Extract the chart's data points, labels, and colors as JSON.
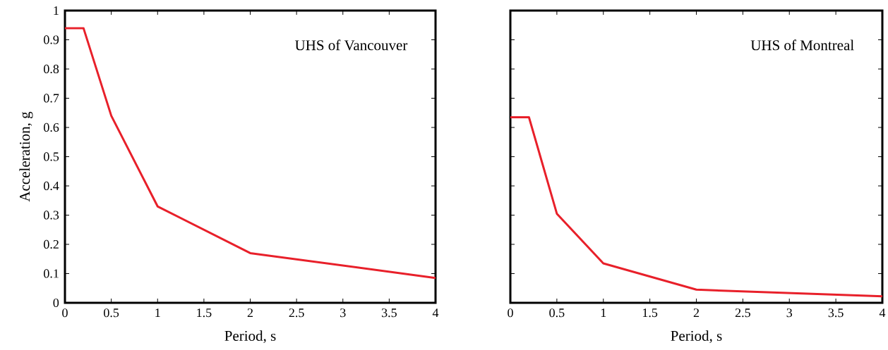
{
  "chart_data": [
    {
      "type": "line",
      "xlabel": "Period, s",
      "ylabel": "Acceleration, g",
      "annotations": [
        "UHS of Vancouver"
      ],
      "xlim": [
        0,
        4
      ],
      "ylim": [
        0,
        1
      ],
      "xticks": [
        0,
        0.5,
        1,
        1.5,
        2,
        2.5,
        3,
        3.5,
        4
      ],
      "yticks": [
        0,
        0.1,
        0.2,
        0.3,
        0.4,
        0.5,
        0.6,
        0.7,
        0.8,
        0.9,
        1
      ],
      "x": [
        0,
        0.2,
        0.5,
        1,
        2,
        4
      ],
      "series": [
        {
          "color": "#e8202a",
          "values": [
            0.94,
            0.94,
            0.64,
            0.33,
            0.17,
            0.085
          ]
        }
      ]
    },
    {
      "type": "line",
      "xlabel": "Period, s",
      "annotations": [
        "UHS of Montreal"
      ],
      "xlim": [
        0,
        4
      ],
      "ylim": [
        0,
        1
      ],
      "xticks": [
        0,
        0.5,
        1,
        1.5,
        2,
        2.5,
        3,
        3.5,
        4
      ],
      "yticks": [
        0,
        0.1,
        0.2,
        0.3,
        0.4,
        0.5,
        0.6,
        0.7,
        0.8,
        0.9,
        1
      ],
      "tick_labels": "x",
      "x": [
        0,
        0.2,
        0.5,
        1,
        2,
        4
      ],
      "series": [
        {
          "color": "#e8202a",
          "values": [
            0.635,
            0.635,
            0.305,
            0.135,
            0.045,
            0.022
          ]
        }
      ]
    }
  ]
}
